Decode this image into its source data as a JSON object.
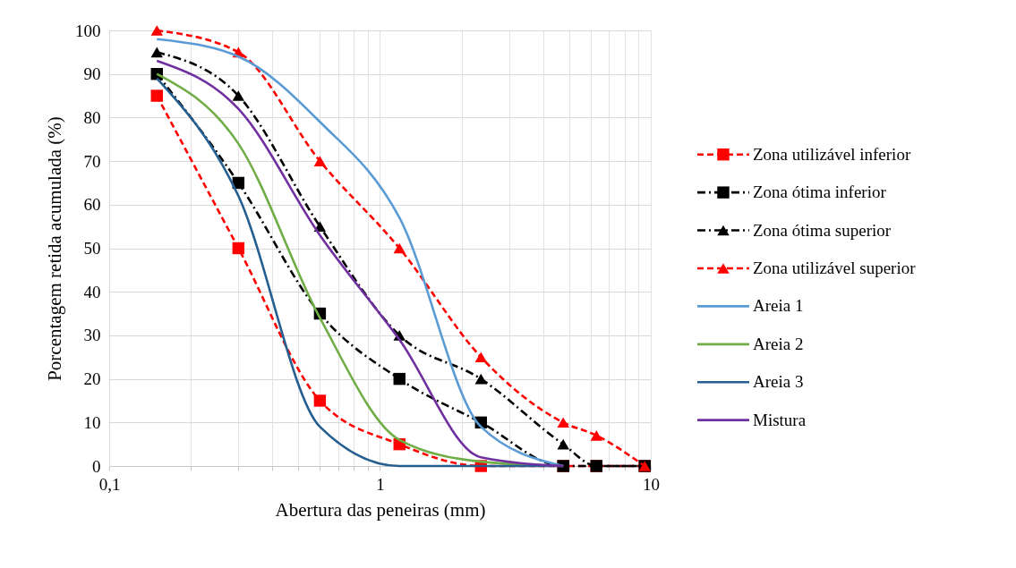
{
  "chart_data": {
    "type": "line",
    "xlabel": "Abertura das peneiras (mm)",
    "ylabel": "Porcentagem retida acumulada (%)",
    "log": "x",
    "xlim": [
      0.1,
      10
    ],
    "xticks": [
      {
        "value": 0.1,
        "label": "0,1"
      },
      1,
      10
    ],
    "ylim": [
      0,
      100
    ],
    "yticks": [
      0,
      10,
      20,
      30,
      40,
      50,
      60,
      70,
      80,
      90,
      100
    ],
    "grid": true,
    "legend": "right",
    "series": [
      {
        "name": "Zona utilizável inferior",
        "color": "#ff0000",
        "marker": "square",
        "line_style": "dashed",
        "x": [
          0.15,
          0.3,
          0.6,
          1.18,
          2.36,
          4.75,
          6.3,
          9.5
        ],
        "values": [
          85,
          50,
          15,
          5,
          0,
          0,
          0,
          0
        ]
      },
      {
        "name": "Zona ótima inferior",
        "color": "#000000",
        "marker": "square",
        "line_style": "dashdot",
        "x": [
          0.15,
          0.3,
          0.6,
          1.18,
          2.36,
          4.75,
          6.3,
          9.5
        ],
        "values": [
          90,
          65,
          35,
          20,
          10,
          0,
          0,
          0
        ]
      },
      {
        "name": "Zona ótima superior",
        "color": "#000000",
        "marker": "triangle",
        "line_style": "dashdot",
        "x": [
          0.15,
          0.3,
          0.6,
          1.18,
          2.36,
          4.75,
          6.3,
          9.5
        ],
        "values": [
          95,
          85,
          55,
          30,
          20,
          5,
          0,
          0
        ]
      },
      {
        "name": "Zona utilizável superior",
        "color": "#ff0000",
        "marker": "triangle",
        "line_style": "dashed",
        "x": [
          0.15,
          0.3,
          0.6,
          1.18,
          2.36,
          4.75,
          6.3,
          9.5
        ],
        "values": [
          100,
          95,
          70,
          50,
          25,
          10,
          7,
          0
        ]
      },
      {
        "name": "Areia 1",
        "color": "#5b9bd5",
        "marker": "none",
        "line_style": "solid",
        "x": [
          0.15,
          0.3,
          0.6,
          1.18,
          2.36,
          4.75
        ],
        "values": [
          98,
          94,
          79,
          57,
          9,
          0
        ]
      },
      {
        "name": "Areia 2",
        "color": "#70ad47",
        "marker": "none",
        "line_style": "solid",
        "x": [
          0.15,
          0.3,
          0.6,
          1.18,
          2.36,
          4.75
        ],
        "values": [
          90,
          74,
          34,
          6,
          1,
          0
        ]
      },
      {
        "name": "Areia 3",
        "color": "#255e91",
        "marker": "none",
        "line_style": "solid",
        "x": [
          0.15,
          0.3,
          0.6,
          1.18,
          2.36,
          4.75
        ],
        "values": [
          89,
          62,
          9,
          0,
          0,
          0
        ]
      },
      {
        "name": "Mistura",
        "color": "#7030a0",
        "marker": "none",
        "line_style": "solid",
        "x": [
          0.15,
          0.3,
          0.6,
          1.18,
          2.36,
          4.75
        ],
        "values": [
          93,
          82,
          53,
          29,
          2,
          0
        ]
      }
    ]
  }
}
